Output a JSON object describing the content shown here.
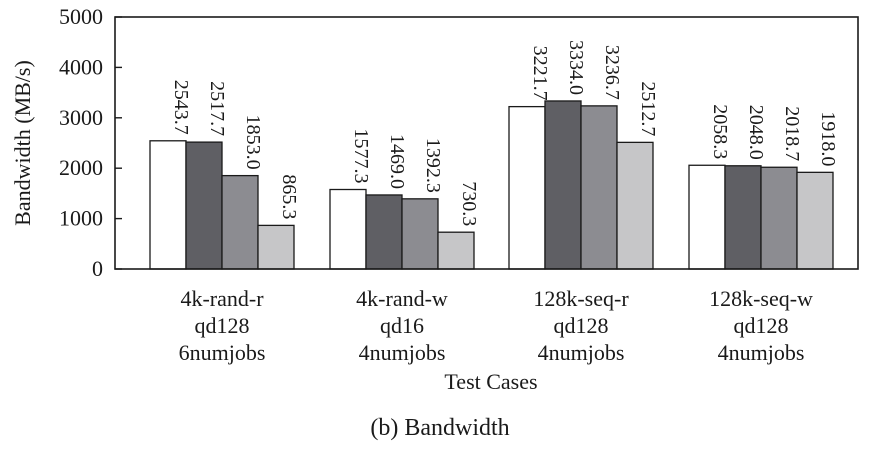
{
  "chart_data": {
    "type": "bar",
    "title": "",
    "caption": "(b) Bandwidth",
    "xlabel": "Test Cases",
    "ylabel": "Bandwidth (MB/s)",
    "ylim": [
      0,
      5000
    ],
    "yticks": [
      0,
      1000,
      2000,
      3000,
      4000,
      5000
    ],
    "grid": false,
    "categories": [
      [
        "4k-rand-r",
        "qd128",
        "6numjobs"
      ],
      [
        "4k-rand-w",
        "qd16",
        "4numjobs"
      ],
      [
        "128k-seq-r",
        "qd128",
        "4numjobs"
      ],
      [
        "128k-seq-w",
        "qd128",
        "4numjobs"
      ]
    ],
    "series": [
      {
        "color": "#ffffff",
        "values": [
          2543.7,
          1577.3,
          3221.7,
          2058.3
        ]
      },
      {
        "color": "#5f5f64",
        "values": [
          2517.7,
          1469.0,
          3334.0,
          2048.0
        ]
      },
      {
        "color": "#8c8c91",
        "values": [
          1853.0,
          1392.3,
          3236.7,
          2018.7
        ]
      },
      {
        "color": "#c6c6c8",
        "values": [
          865.3,
          730.3,
          2512.7,
          1918.0
        ]
      }
    ],
    "data_labels": [
      [
        "2543.7",
        "1577.3",
        "3221.7",
        "2058.3"
      ],
      [
        "2517.7",
        "1469.0",
        "3334.0",
        "2048.0"
      ],
      [
        "1853.0",
        "1392.3",
        "3236.7",
        "2018.7"
      ],
      [
        "865.3",
        "730.3",
        "2512.7",
        "1918.0"
      ]
    ]
  }
}
